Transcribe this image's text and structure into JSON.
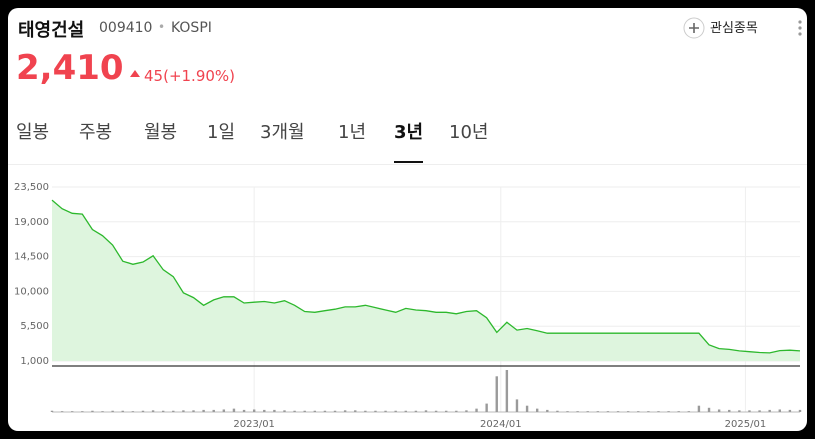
{
  "header": {
    "name": "태영건설",
    "code": "009410",
    "market": "KOSPI",
    "watch_label": "관심종목"
  },
  "quote": {
    "price": "2,410",
    "change": "45(+1.90%)"
  },
  "tabs": {
    "items": [
      "일봉",
      "주봉",
      "월봉",
      "1일",
      "3개월",
      "1년",
      "3년",
      "10년"
    ],
    "selected": 6
  },
  "chart_data": {
    "type": "area",
    "color": "#2db82d",
    "fill": "#def5de",
    "volume_color": "#9a9a9a",
    "values": [
      21800,
      20700,
      20100,
      20000,
      18000,
      17200,
      16000,
      13900,
      13500,
      13800,
      14600,
      12800,
      11900,
      9800,
      9200,
      8200,
      8900,
      9300,
      9300,
      8500,
      8600,
      8700,
      8500,
      8800,
      8200,
      7400,
      7300,
      7500,
      7700,
      8000,
      8000,
      8200,
      7900,
      7600,
      7300,
      7800,
      7600,
      7500,
      7300,
      7300,
      7100,
      7400,
      7500,
      6600,
      4700,
      6000,
      5000,
      5200,
      4900,
      4600,
      4600,
      4600,
      4600,
      4600,
      4600,
      4600,
      4600,
      4600,
      4600,
      4600,
      4600,
      4600,
      4600,
      4600,
      4600,
      3100,
      2600,
      2500,
      2300,
      2200,
      2100,
      2050,
      2350,
      2400,
      2300
    ],
    "volume": [
      3,
      2,
      2,
      2,
      3,
      2,
      3,
      3,
      2,
      3,
      4,
      3,
      3,
      4,
      4,
      5,
      5,
      6,
      8,
      5,
      6,
      5,
      5,
      4,
      3,
      3,
      3,
      3,
      3,
      4,
      4,
      3,
      3,
      3,
      3,
      3,
      3,
      4,
      3,
      3,
      3,
      4,
      8,
      20,
      85,
      100,
      30,
      15,
      8,
      5,
      3,
      2,
      2,
      2,
      2,
      2,
      2,
      2,
      2,
      2,
      2,
      2,
      2,
      2,
      15,
      10,
      6,
      5,
      4,
      4,
      4,
      5,
      6,
      5,
      5
    ],
    "vlim": [
      0,
      100
    ],
    "xlim": [
      0,
      74
    ],
    "xticks": [
      {
        "value": 20,
        "label": "2023/01"
      },
      {
        "value": 44.4,
        "label": "2024/01"
      },
      {
        "value": 68.6,
        "label": "2025/01"
      }
    ],
    "ylim": [
      1000,
      23500
    ],
    "yticks": [
      {
        "value": 23500,
        "label": "23,500"
      },
      {
        "value": 19000,
        "label": "19,000"
      },
      {
        "value": 14500,
        "label": "14,500"
      },
      {
        "value": 10000,
        "label": "10,000"
      },
      {
        "value": 5500,
        "label": "5,500"
      },
      {
        "value": 1000,
        "label": "1,000"
      }
    ],
    "grid": true
  }
}
